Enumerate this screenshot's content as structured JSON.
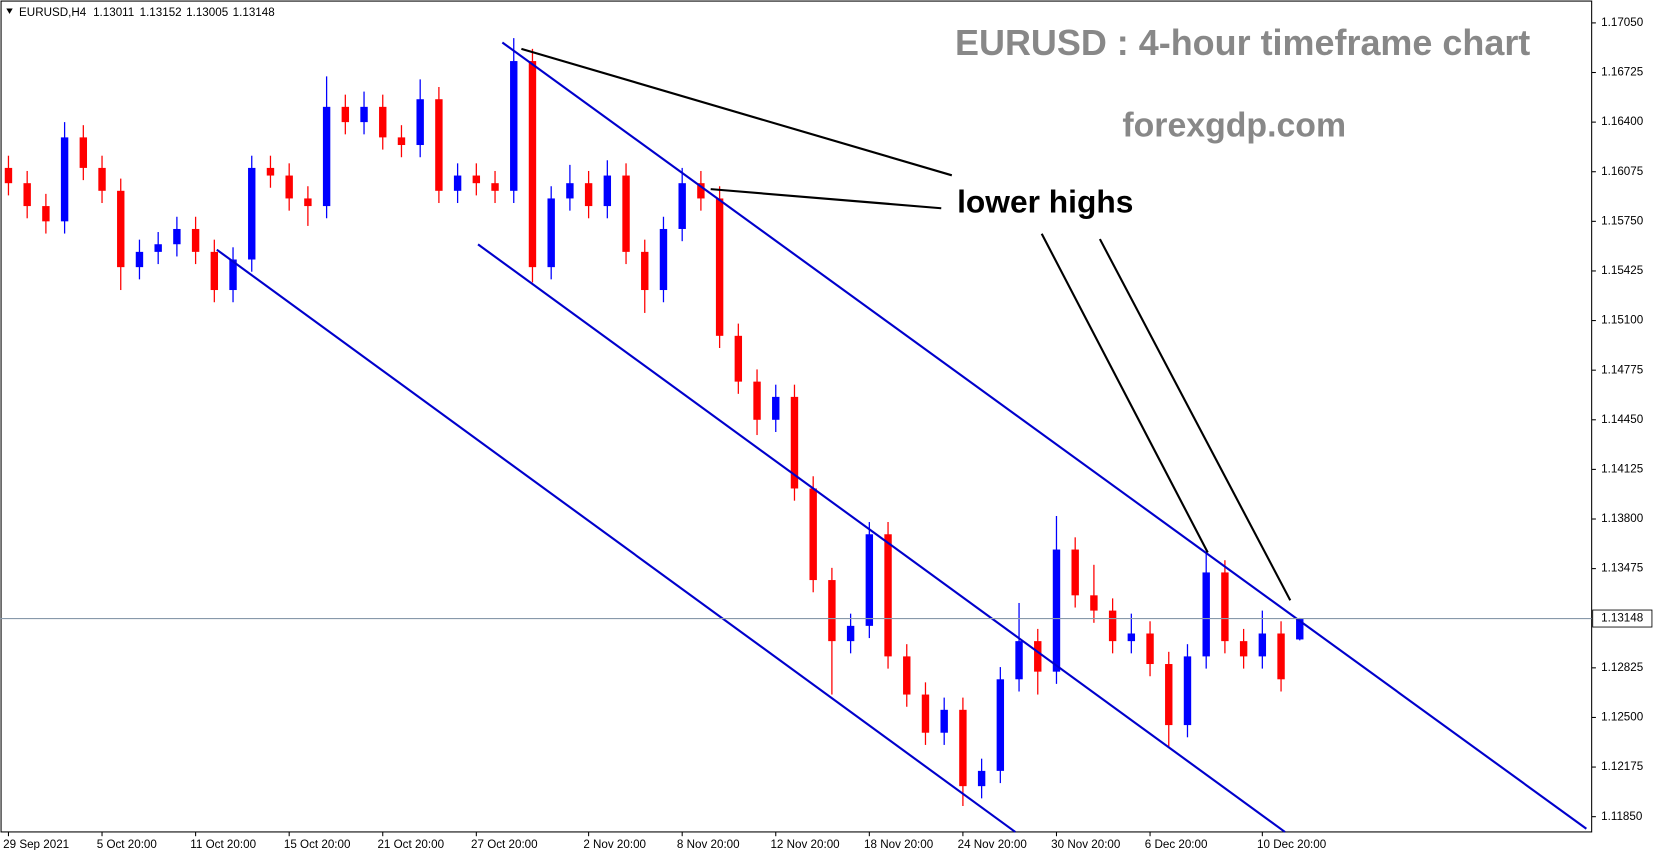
{
  "chart_data": {
    "type": "candlestick",
    "symbol": "EURUSD,H4",
    "title": "EURUSD : 4-hour timeframe chart",
    "subtitle": "forexgdp.com",
    "annotation": "lower highs",
    "up_color": "#0000ff",
    "down_color": "#ff0000",
    "ohlc": [
      [
        1.161,
        1.1618,
        1.1592,
        1.16
      ],
      [
        1.16,
        1.1608,
        1.1577,
        1.1585
      ],
      [
        1.1585,
        1.1593,
        1.1567,
        1.1575
      ],
      [
        1.1575,
        1.164,
        1.1567,
        1.163
      ],
      [
        1.163,
        1.1638,
        1.1602,
        1.161
      ],
      [
        1.161,
        1.1618,
        1.1587,
        1.1595
      ],
      [
        1.1595,
        1.1603,
        1.153,
        1.1545
      ],
      [
        1.1545,
        1.1563,
        1.1537,
        1.1555
      ],
      [
        1.1555,
        1.1568,
        1.1547,
        1.156
      ],
      [
        1.156,
        1.1578,
        1.1552,
        1.157
      ],
      [
        1.157,
        1.1578,
        1.1547,
        1.1555
      ],
      [
        1.1555,
        1.1563,
        1.1522,
        1.153
      ],
      [
        1.153,
        1.1558,
        1.1522,
        1.155
      ],
      [
        1.155,
        1.1618,
        1.1542,
        1.161
      ],
      [
        1.161,
        1.1618,
        1.1597,
        1.1605
      ],
      [
        1.1605,
        1.1613,
        1.1582,
        1.159
      ],
      [
        1.159,
        1.1598,
        1.1572,
        1.1585
      ],
      [
        1.1585,
        1.167,
        1.1577,
        1.165
      ],
      [
        1.165,
        1.1658,
        1.1632,
        1.164
      ],
      [
        1.164,
        1.166,
        1.1632,
        1.165
      ],
      [
        1.165,
        1.1658,
        1.1622,
        1.163
      ],
      [
        1.163,
        1.1638,
        1.1617,
        1.1625
      ],
      [
        1.1625,
        1.1668,
        1.1617,
        1.1655
      ],
      [
        1.1655,
        1.1663,
        1.1587,
        1.1595
      ],
      [
        1.1595,
        1.1613,
        1.1587,
        1.1605
      ],
      [
        1.1605,
        1.1613,
        1.1592,
        1.16
      ],
      [
        1.16,
        1.1608,
        1.1587,
        1.1595
      ],
      [
        1.1595,
        1.1695,
        1.1587,
        1.168
      ],
      [
        1.168,
        1.1688,
        1.1535,
        1.1545
      ],
      [
        1.1545,
        1.1598,
        1.1537,
        1.159
      ],
      [
        1.159,
        1.1612,
        1.1582,
        1.16
      ],
      [
        1.16,
        1.1608,
        1.1577,
        1.1585
      ],
      [
        1.1585,
        1.1615,
        1.1577,
        1.1605
      ],
      [
        1.1605,
        1.1613,
        1.1547,
        1.1555
      ],
      [
        1.1555,
        1.1563,
        1.1515,
        1.153
      ],
      [
        1.153,
        1.1578,
        1.1522,
        1.157
      ],
      [
        1.157,
        1.161,
        1.1562,
        1.16
      ],
      [
        1.16,
        1.1608,
        1.1582,
        1.159
      ],
      [
        1.159,
        1.1598,
        1.1492,
        1.15
      ],
      [
        1.15,
        1.1508,
        1.1462,
        1.147
      ],
      [
        1.147,
        1.1478,
        1.1435,
        1.1445
      ],
      [
        1.1445,
        1.1468,
        1.1437,
        1.146
      ],
      [
        1.146,
        1.1468,
        1.1392,
        1.14
      ],
      [
        1.14,
        1.1408,
        1.1332,
        1.134
      ],
      [
        1.134,
        1.1348,
        1.1265,
        1.13
      ],
      [
        1.13,
        1.1318,
        1.1292,
        1.131
      ],
      [
        1.131,
        1.1378,
        1.1302,
        1.137
      ],
      [
        1.137,
        1.1378,
        1.1282,
        1.129
      ],
      [
        1.129,
        1.1298,
        1.1257,
        1.1265
      ],
      [
        1.1265,
        1.1273,
        1.1232,
        1.124
      ],
      [
        1.124,
        1.1263,
        1.1232,
        1.1255
      ],
      [
        1.1255,
        1.1263,
        1.1192,
        1.1205
      ],
      [
        1.1205,
        1.1223,
        1.1197,
        1.1215
      ],
      [
        1.1215,
        1.1283,
        1.1207,
        1.1275
      ],
      [
        1.1275,
        1.1325,
        1.1267,
        1.13
      ],
      [
        1.13,
        1.1308,
        1.1265,
        1.128
      ],
      [
        1.128,
        1.1382,
        1.1272,
        1.136
      ],
      [
        1.136,
        1.1368,
        1.1322,
        1.133
      ],
      [
        1.133,
        1.135,
        1.1312,
        1.132
      ],
      [
        1.132,
        1.1328,
        1.1292,
        1.13
      ],
      [
        1.13,
        1.1318,
        1.1292,
        1.1305
      ],
      [
        1.1305,
        1.1313,
        1.1277,
        1.1285
      ],
      [
        1.1285,
        1.1293,
        1.123,
        1.1245
      ],
      [
        1.1245,
        1.1298,
        1.1237,
        1.129
      ],
      [
        1.129,
        1.1358,
        1.1282,
        1.1345
      ],
      [
        1.1345,
        1.1353,
        1.1292,
        1.13
      ],
      [
        1.13,
        1.1308,
        1.1282,
        1.129
      ],
      [
        1.129,
        1.132,
        1.1282,
        1.1305
      ],
      [
        1.1305,
        1.1313,
        1.1267,
        1.1275
      ],
      [
        1.13011,
        1.13152,
        1.13005,
        1.13148
      ]
    ],
    "xticks": [
      {
        "value": 0,
        "label": "29 Sep 2021"
      },
      {
        "value": 5,
        "label": "5 Oct 20:00"
      },
      {
        "value": 10,
        "label": "11 Oct 20:00"
      },
      {
        "value": 15,
        "label": "15 Oct 20:00"
      },
      {
        "value": 20,
        "label": "21 Oct 20:00"
      },
      {
        "value": 25,
        "label": "27 Oct 20:00"
      },
      {
        "value": 31,
        "label": "2 Nov 20:00"
      },
      {
        "value": 36,
        "label": "8 Nov 20:00"
      },
      {
        "value": 41,
        "label": "12 Nov 20:00"
      },
      {
        "value": 46,
        "label": "18 Nov 20:00"
      },
      {
        "value": 51,
        "label": "24 Nov 20:00"
      },
      {
        "value": 56,
        "label": "30 Nov 20:00"
      },
      {
        "value": 61,
        "label": "6 Dec 20:00"
      },
      {
        "value": 67,
        "label": "10 Dec 20:00"
      }
    ],
    "ylim": [
      1.1175,
      1.172
    ],
    "yticks": [
      {
        "value": 1.1705,
        "label": "1.17050"
      },
      1.16725,
      {
        "value": 1.164,
        "label": "1.16400"
      },
      1.16075,
      {
        "value": 1.1575,
        "label": "1.15750"
      },
      1.15425,
      {
        "value": 1.151,
        "label": "1.15100"
      },
      1.14775,
      {
        "value": 1.1445,
        "label": "1.14450"
      },
      1.14125,
      {
        "value": 1.138,
        "label": "1.13800"
      },
      1.13475,
      1.12825,
      {
        "value": 1.125,
        "label": "1.12500"
      },
      1.12175,
      {
        "value": 1.1185,
        "label": "1.11850"
      }
    ]
  }
}
